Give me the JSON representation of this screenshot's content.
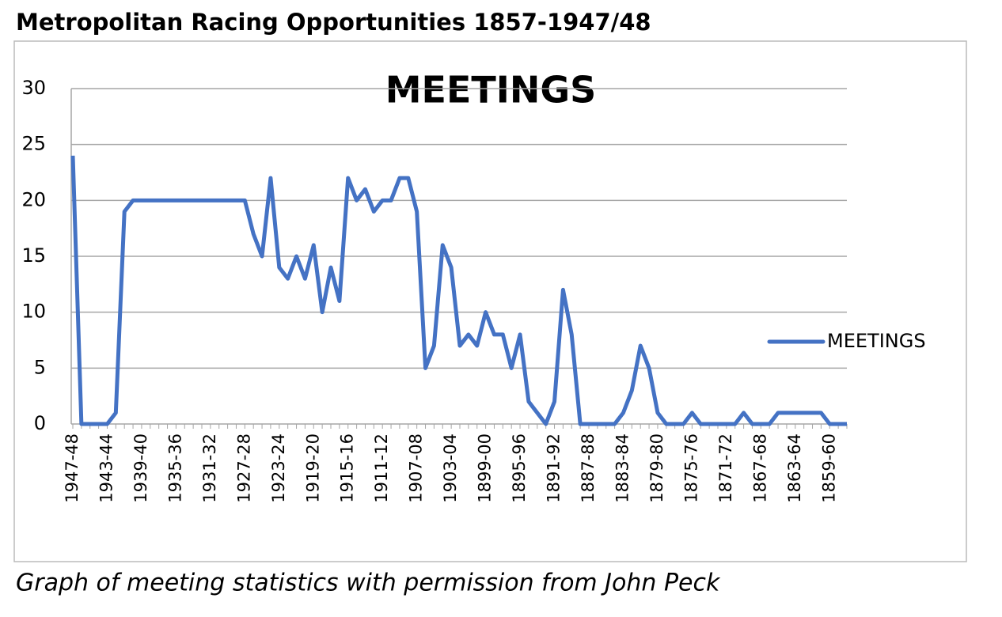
{
  "header": {
    "title": "Metropolitan Racing Opportunities 1857-1947/48"
  },
  "chart_data": {
    "type": "line",
    "title": "MEETINGS",
    "categories": [
      "1947-48",
      null,
      null,
      null,
      "1943-44",
      null,
      null,
      null,
      "1939-40",
      null,
      null,
      null,
      "1935-36",
      null,
      null,
      null,
      "1931-32",
      null,
      null,
      null,
      "1927-28",
      null,
      null,
      null,
      "1923-24",
      null,
      null,
      null,
      "1919-20",
      null,
      null,
      null,
      "1915-16",
      null,
      null,
      null,
      "1911-12",
      null,
      null,
      null,
      "1907-08",
      null,
      null,
      null,
      "1903-04",
      null,
      null,
      null,
      "1899-00",
      null,
      null,
      null,
      "1895-96",
      null,
      null,
      null,
      "1891-92",
      null,
      null,
      null,
      "1887-88",
      null,
      null,
      null,
      "1883-84",
      null,
      null,
      null,
      "1879-80",
      null,
      null,
      null,
      "1875-76",
      null,
      null,
      null,
      "1871-72",
      null,
      null,
      null,
      "1867-68",
      null,
      null,
      null,
      "1863-64",
      null,
      null,
      null,
      "1859-60",
      null,
      null
    ],
    "series": [
      {
        "name": "MEETINGS",
        "color": "#4472c4",
        "values": [
          24,
          0,
          0,
          0,
          0,
          1,
          19,
          20,
          20,
          20,
          20,
          20,
          20,
          20,
          20,
          20,
          20,
          20,
          20,
          20,
          20,
          17,
          15,
          22,
          14,
          13,
          15,
          13,
          16,
          10,
          14,
          11,
          22,
          20,
          21,
          19,
          20,
          20,
          22,
          22,
          19,
          5,
          7,
          16,
          14,
          7,
          8,
          7,
          10,
          8,
          8,
          5,
          8,
          2,
          1,
          0,
          2,
          12,
          8,
          0,
          0,
          0,
          0,
          0,
          1,
          3,
          7,
          5,
          1,
          0,
          0,
          0,
          1,
          0,
          0,
          0,
          0,
          0,
          1,
          0,
          0,
          0,
          1,
          1,
          1,
          1,
          1,
          1,
          0,
          0,
          0
        ]
      }
    ],
    "ylim": [
      0,
      30
    ],
    "yticks": [
      0,
      5,
      10,
      15,
      20,
      25,
      30
    ],
    "grid": true,
    "legend": "right"
  },
  "caption": "Graph of meeting statistics with permission from John Peck"
}
